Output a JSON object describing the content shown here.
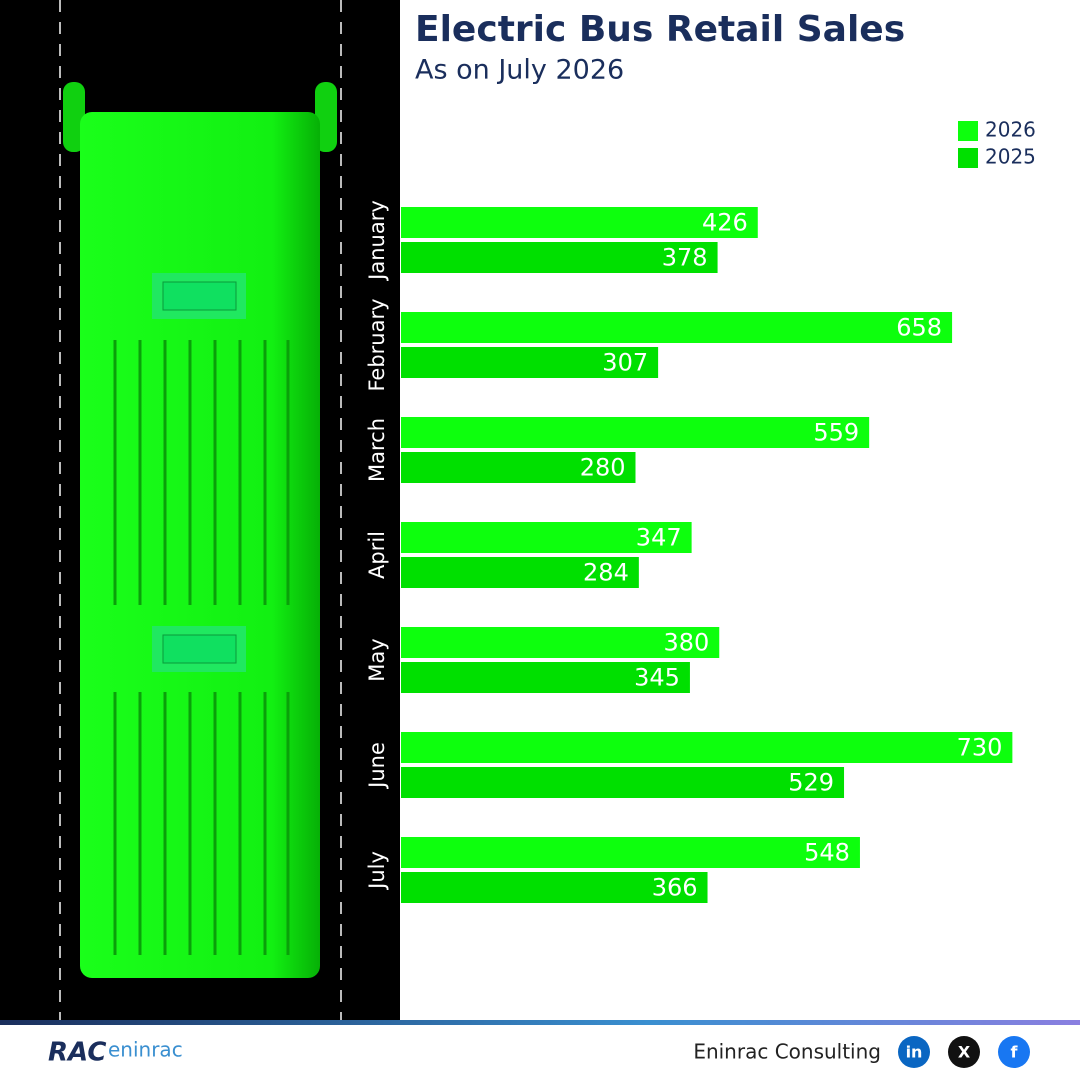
{
  "chart_data": {
    "type": "bar",
    "orientation": "horizontal",
    "title": "Electric Bus Retail Sales",
    "subtitle": "As on July 2026",
    "categories": [
      "January",
      "February",
      "March",
      "April",
      "May",
      "June",
      "July"
    ],
    "series": [
      {
        "name": "2026",
        "color": "#0dff0d",
        "values": [
          426,
          658,
          559,
          347,
          380,
          730,
          548
        ]
      },
      {
        "name": "2025",
        "color": "#00e000",
        "values": [
          378,
          307,
          280,
          284,
          345,
          529,
          366
        ]
      }
    ],
    "xlim": [
      0,
      800
    ],
    "legend": "top-right",
    "value_label_color": "#ffffff"
  },
  "footer": {
    "company": "Eninrac Consulting",
    "logo": {
      "mark": "RAC",
      "word": "eninrac"
    },
    "social": [
      "in",
      "X",
      "f"
    ]
  }
}
